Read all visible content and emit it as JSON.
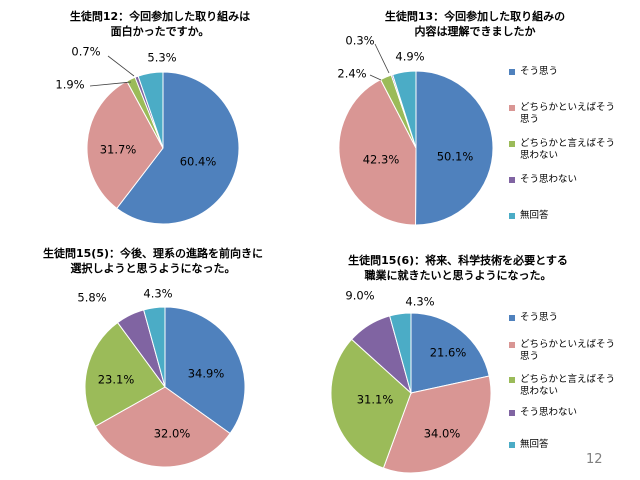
{
  "page_number": "12",
  "colors": {
    "blue": "#4f81bd",
    "pink": "#d99694",
    "green": "#9bbb59",
    "purple": "#8064a2",
    "cyan": "#4bacc6"
  },
  "legend_labels": [
    "そう思う",
    "どちらかといえばそう思う",
    "どちらかと言えばそう思わない",
    "そう思わない",
    "無回答"
  ],
  "chart_data": [
    {
      "type": "pie",
      "title": "生徒問12：今回参加した取り組みは\n面白かったですか。",
      "categories": [
        "そう思う",
        "どちらかといえばそう思う",
        "どちらかと言えばそう思わない",
        "そう思わない",
        "無回答"
      ],
      "values": [
        60.4,
        31.7,
        1.9,
        0.7,
        5.3
      ],
      "labels": [
        "60.4%",
        "31.7%",
        "1.9%",
        "0.7%",
        "5.3%"
      ],
      "legend": false
    },
    {
      "type": "pie",
      "title": "生徒問13：今回参加した取り組みの\n内容は理解できましたか",
      "categories": [
        "そう思う",
        "どちらかといえばそう思う",
        "どちらかと言えばそう思わない",
        "そう思わない",
        "無回答"
      ],
      "values": [
        50.1,
        42.3,
        2.4,
        0.3,
        4.9
      ],
      "labels": [
        "50.1%",
        "42.3%",
        "2.4%",
        "0.3%",
        "4.9%"
      ],
      "legend": true,
      "legend_position": "right"
    },
    {
      "type": "pie",
      "title": "生徒問15(5)：今後、理系の進路を前向きに\n選択しようと思うようになった。",
      "categories": [
        "そう思う",
        "どちらかといえばそう思う",
        "どちらかと言えばそう思わない",
        "そう思わない",
        "無回答"
      ],
      "values": [
        34.9,
        32.0,
        23.1,
        5.8,
        4.3
      ],
      "labels": [
        "34.9%",
        "32.0%",
        "23.1%",
        "5.8%",
        "4.3%"
      ],
      "legend": false
    },
    {
      "type": "pie",
      "title": "生徒問15(6)：将来、科学技術を必要とする\n職業に就きたいと思うようになった。",
      "categories": [
        "そう思う",
        "どちらかといえばそう思う",
        "どちらかと言えばそう思わない",
        "そう思わない",
        "無回答"
      ],
      "values": [
        21.6,
        34.0,
        31.1,
        9.0,
        4.3
      ],
      "labels": [
        "21.6%",
        "34.0%",
        "31.1%",
        "9.0%",
        "4.3%"
      ],
      "legend": true,
      "legend_position": "right"
    }
  ]
}
